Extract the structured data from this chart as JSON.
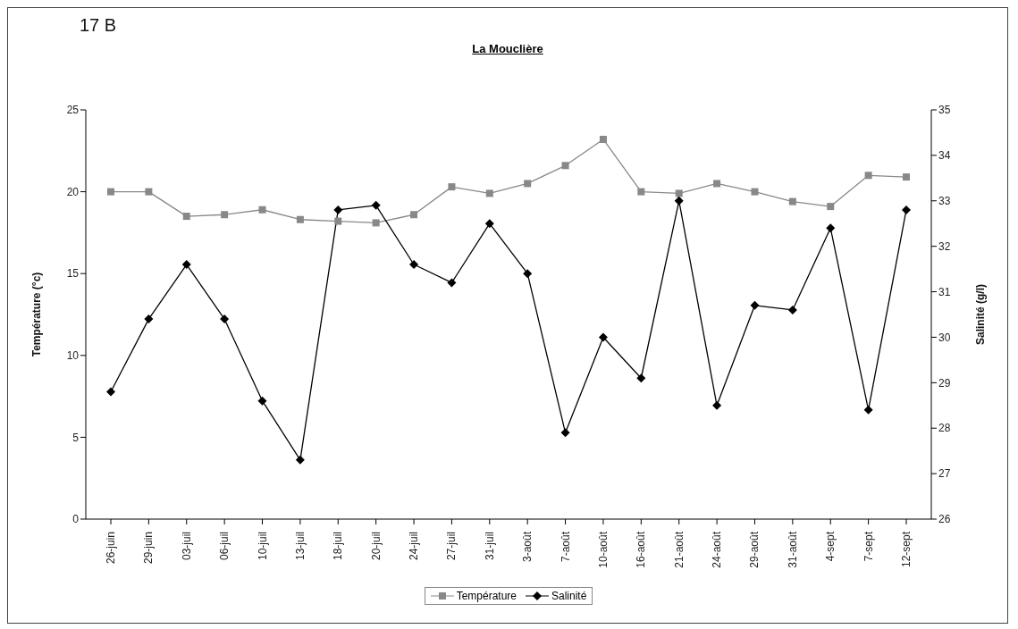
{
  "chart_data": {
    "type": "line",
    "title": "La Mouclière",
    "annotations": [
      "17 B"
    ],
    "ylabel": "Température (°c)",
    "y2label": "Salinité (g/l)",
    "categories": [
      "26-juin",
      "29-juin",
      "03-juil",
      "06-juil",
      "10-juil",
      "13-juil",
      "18-juil",
      "20-juil",
      "24-juil",
      "27-juil",
      "31-juil",
      "3-août",
      "7-août",
      "10-août",
      "16-août",
      "21-août",
      "24-août",
      "29-août",
      "31-août",
      "4-sept",
      "7-sept",
      "12-sept"
    ],
    "series": [
      {
        "name": "Température",
        "color": "#888888",
        "marker": "square",
        "values": [
          20,
          20,
          18.5,
          18.6,
          18.9,
          18.3,
          18.2,
          18.1,
          18.6,
          20.3,
          19.9,
          20.5,
          21.6,
          23.2,
          20.0,
          19.9,
          20.5,
          20.0,
          19.4,
          19.1,
          21.0,
          20.9
        ]
      },
      {
        "name": "Salinité",
        "color": "#000000",
        "marker": "diamond",
        "axis": "y2",
        "values": [
          28.8,
          30.4,
          31.6,
          30.4,
          28.6,
          27.3,
          32.8,
          32.9,
          31.6,
          31.2,
          32.5,
          31.4,
          27.9,
          30.0,
          29.1,
          33.0,
          28.5,
          30.7,
          30.6,
          32.4,
          28.4,
          32.8
        ]
      }
    ],
    "ylim": [
      0,
      25
    ],
    "yticks": [
      0,
      5,
      10,
      15,
      20,
      25
    ],
    "y2lim": [
      26,
      35
    ],
    "y2ticks": [
      26,
      27,
      28,
      29,
      30,
      31,
      32,
      33,
      34,
      35
    ],
    "grid": false,
    "legend": "bottom",
    "line_style": "solid"
  }
}
